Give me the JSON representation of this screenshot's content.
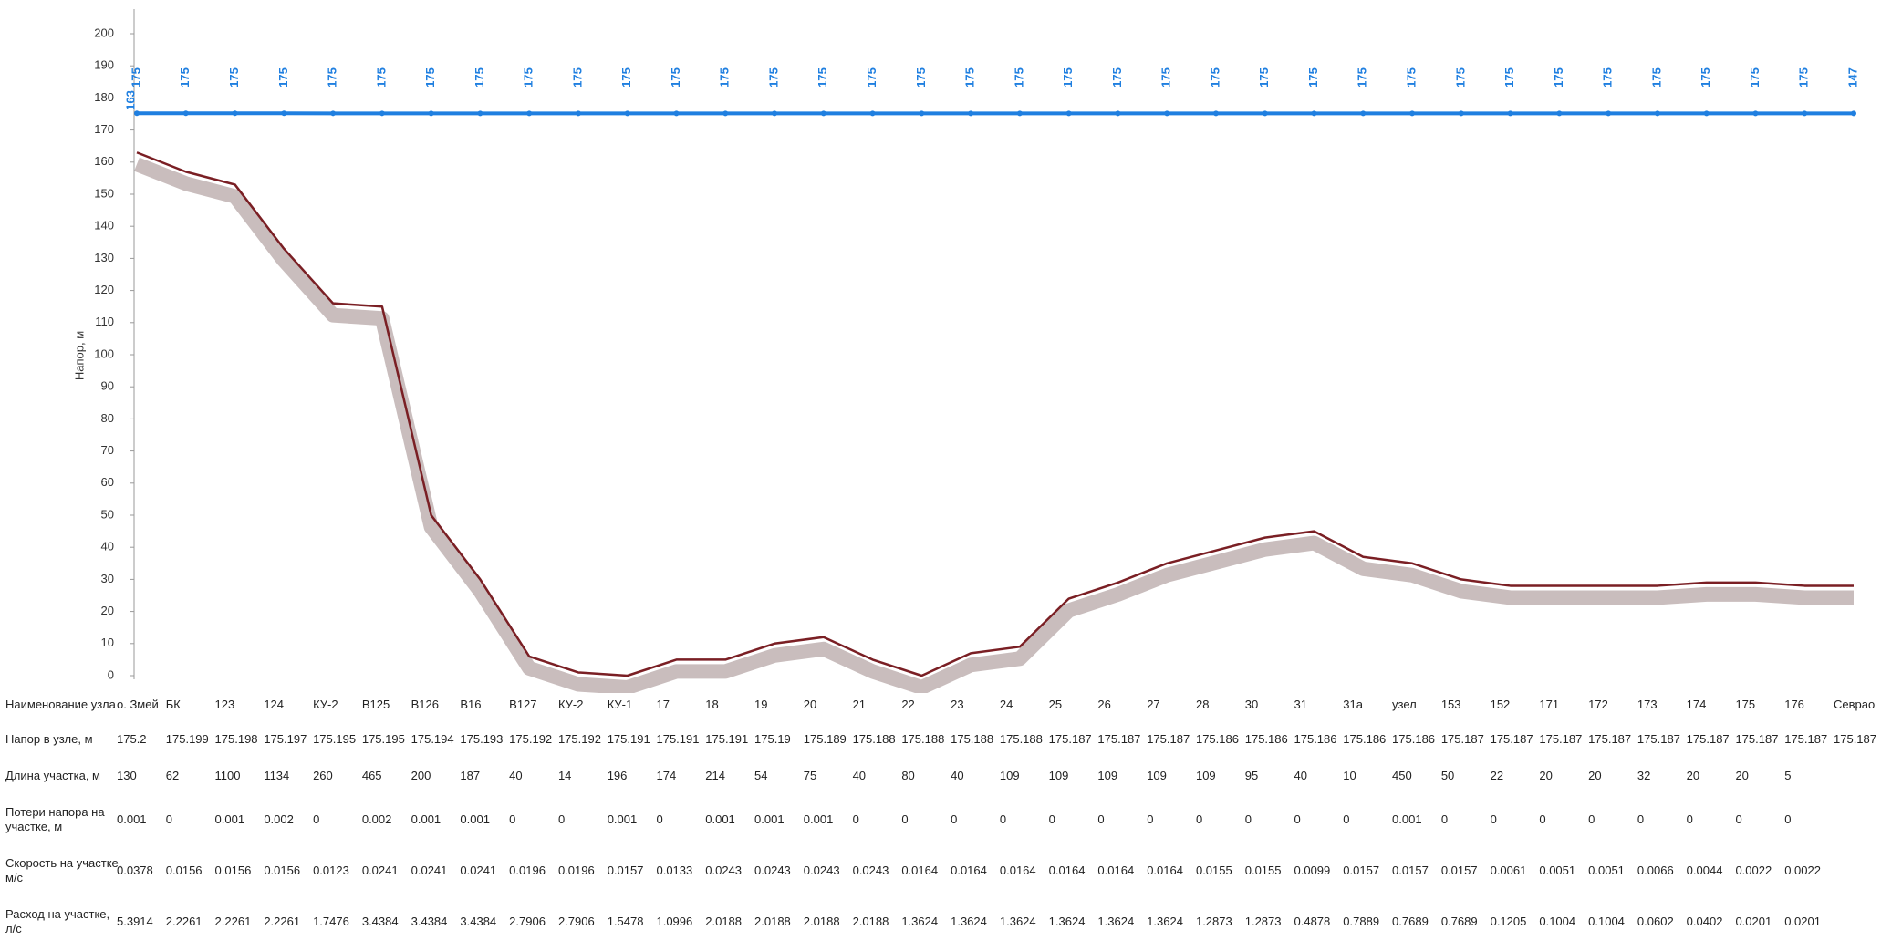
{
  "chart_data": {
    "type": "line",
    "y_label": "Напор, м",
    "ylim": [
      0,
      200
    ],
    "yticks": [
      0,
      10,
      20,
      30,
      40,
      50,
      60,
      70,
      80,
      90,
      100,
      110,
      120,
      130,
      140,
      150,
      160,
      170,
      180,
      190,
      200
    ],
    "categories": [
      "о. Змей",
      "БК",
      "123",
      "124",
      "КУ-2",
      "В125",
      "В126",
      "В16",
      "В127",
      "КУ-2",
      "КУ-1",
      "17",
      "18",
      "19",
      "20",
      "21",
      "22",
      "23",
      "24",
      "25",
      "26",
      "27",
      "28",
      "30",
      "31",
      "31а",
      "узел",
      "153",
      "152",
      "171",
      "172",
      "173",
      "174",
      "175",
      "176",
      "Севрао"
    ],
    "series": [
      {
        "color": "#7a1f24",
        "shadow": "#c9bdbd",
        "values": [
          163,
          157,
          153,
          133,
          116,
          115,
          50,
          30,
          6,
          1,
          0,
          5,
          5,
          10,
          12,
          5,
          0,
          7,
          9,
          24,
          29,
          35,
          39,
          43,
          45,
          37,
          35,
          30,
          28,
          28,
          28,
          28,
          29,
          29,
          28,
          28
        ]
      },
      {
        "color": "#1f7fe0",
        "values": [
          175.2,
          175.199,
          175.198,
          175.197,
          175.195,
          175.195,
          175.194,
          175.193,
          175.192,
          175.192,
          175.191,
          175.191,
          175.191,
          175.19,
          175.189,
          175.188,
          175.188,
          175.188,
          175.188,
          175.187,
          175.187,
          175.187,
          175.186,
          175.186,
          175.186,
          175.186,
          175.186,
          175.187,
          175.187,
          175.187,
          175.187,
          175.187,
          175.187,
          175.187,
          175.187,
          175.187
        ],
        "value_labels": [
          "175",
          "175",
          "175",
          "175",
          "175",
          "175",
          "175",
          "175",
          "175",
          "175",
          "175",
          "175",
          "175",
          "175",
          "175",
          "175",
          "175",
          "175",
          "175",
          "175",
          "175",
          "175",
          "175",
          "175",
          "175",
          "175",
          "175",
          "175",
          "175",
          "175",
          "175",
          "175",
          "175",
          "175",
          "175",
          null
        ]
      }
    ],
    "annotations": [
      "163",
      "147"
    ]
  },
  "table": {
    "row_headers": [
      "Наименование узла",
      "Напор в узле, м",
      "Длина участка, м",
      "Потери напора на участке, м",
      "Скорость на участке, м/с",
      "Расход на участке, л/с"
    ],
    "lengths": [
      130,
      62,
      1100,
      1134,
      260,
      465,
      200,
      187,
      40,
      14,
      196,
      174,
      214,
      54,
      75,
      40,
      80,
      40,
      109,
      109,
      109,
      109,
      109,
      95,
      40,
      10,
      450,
      50,
      22,
      20,
      20,
      32,
      20,
      20,
      5
    ],
    "losses": [
      0.001,
      0,
      0.001,
      0.002,
      0,
      0.002,
      0.001,
      0.001,
      0,
      0,
      0.001,
      0,
      0.001,
      0.001,
      0.001,
      0,
      0,
      0,
      0,
      0,
      0,
      0,
      0,
      0,
      0,
      0,
      0.001,
      0,
      0,
      0,
      0,
      0,
      0,
      0,
      0
    ],
    "speeds": [
      0.0378,
      0.0156,
      0.0156,
      0.0156,
      0.0123,
      0.0241,
      0.0241,
      0.0241,
      0.0196,
      0.0196,
      0.0157,
      0.0133,
      0.0243,
      0.0243,
      0.0243,
      0.0243,
      0.0164,
      0.0164,
      0.0164,
      0.0164,
      0.0164,
      0.0164,
      0.0155,
      0.0155,
      0.0099,
      0.0157,
      0.0157,
      0.0157,
      0.0061,
      0.0051,
      0.0051,
      0.0066,
      0.0044,
      0.0022,
      0.0022
    ],
    "flows": [
      5.3914,
      2.2261,
      2.2261,
      2.2261,
      1.7476,
      3.4384,
      3.4384,
      3.4384,
      2.7906,
      2.7906,
      1.5478,
      1.0996,
      2.0188,
      2.0188,
      2.0188,
      2.0188,
      1.3624,
      1.3624,
      1.3624,
      1.3624,
      1.3624,
      1.3624,
      1.2873,
      1.2873,
      0.4878,
      0.7889,
      0.7689,
      0.7689,
      0.1205,
      0.1004,
      0.1004,
      0.0602,
      0.0402,
      0.0201,
      0.0201
    ]
  }
}
